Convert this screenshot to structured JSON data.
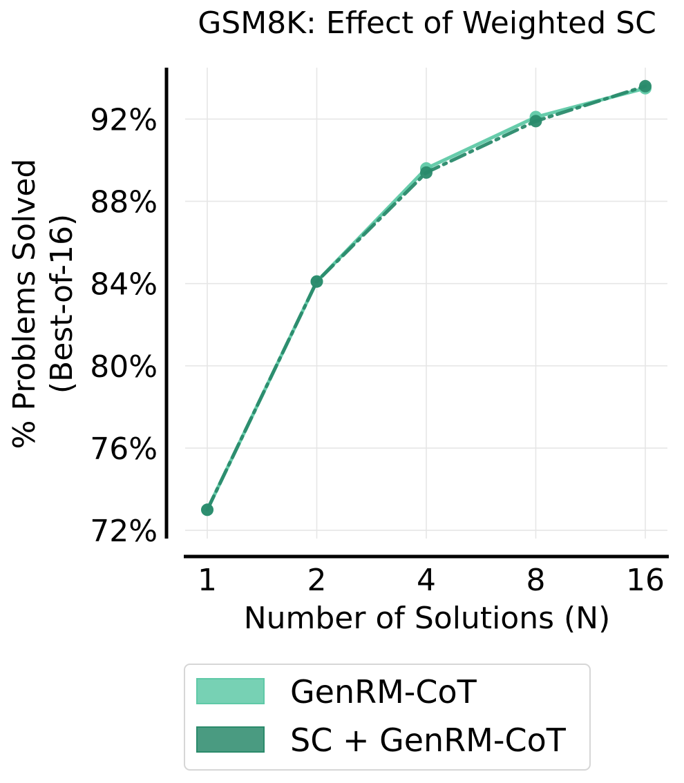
{
  "chart_data": {
    "type": "line",
    "title": "GSM8K: Effect of Weighted SC",
    "xlabel": "Number of Solutions (N)",
    "ylabel_line1": "% Problems Solved",
    "ylabel_line2": "(Best-of-16)",
    "x_scale": "log2",
    "x": [
      1,
      2,
      4,
      8,
      16
    ],
    "x_tick_labels": [
      "1",
      "2",
      "4",
      "8",
      "16"
    ],
    "ylim": [
      71.6,
      94.5
    ],
    "y_ticks": [
      72,
      76,
      80,
      84,
      88,
      92
    ],
    "y_tick_labels": [
      "72%",
      "76%",
      "80%",
      "84%",
      "88%",
      "92%"
    ],
    "grid": true,
    "legend_position": "bottom-center",
    "series": [
      {
        "name": "GenRM-CoT",
        "color": "#5fc9a7",
        "linestyle": "solid",
        "values": [
          73.0,
          84.1,
          89.6,
          92.1,
          93.5
        ]
      },
      {
        "name": "SC + GenRM-CoT",
        "color": "#2a8a6b",
        "linestyle": "dashdot",
        "values": [
          73.0,
          84.1,
          89.4,
          91.9,
          93.6
        ]
      }
    ]
  }
}
